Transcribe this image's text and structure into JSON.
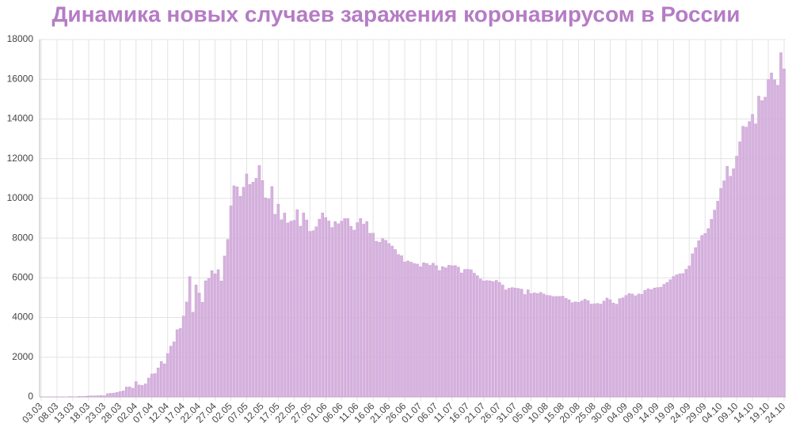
{
  "chart_data": {
    "type": "bar",
    "title": "Динамика новых случаев заражения коронавирусом в России",
    "categories": [
      "03.03",
      null,
      null,
      null,
      null,
      "08.03",
      null,
      null,
      null,
      null,
      "13.03",
      null,
      null,
      null,
      null,
      "18.03",
      null,
      null,
      null,
      null,
      "23.03",
      null,
      null,
      null,
      null,
      "28.03",
      null,
      null,
      null,
      null,
      "02.04",
      null,
      null,
      null,
      null,
      "07.04",
      null,
      null,
      null,
      null,
      "12.04",
      null,
      null,
      null,
      null,
      "17.04",
      null,
      null,
      null,
      null,
      "22.04",
      null,
      null,
      null,
      null,
      "27.04",
      null,
      null,
      null,
      null,
      "02.05",
      null,
      null,
      null,
      null,
      "07.05",
      null,
      null,
      null,
      null,
      "12.05",
      null,
      null,
      null,
      null,
      "17.05",
      null,
      null,
      null,
      null,
      "22.05",
      null,
      null,
      null,
      null,
      "27.05",
      null,
      null,
      null,
      null,
      "01.06",
      null,
      null,
      null,
      null,
      "06.06",
      null,
      null,
      null,
      null,
      "11.06",
      null,
      null,
      null,
      null,
      "16.06",
      null,
      null,
      null,
      null,
      "21.06",
      null,
      null,
      null,
      null,
      "26.06",
      null,
      null,
      null,
      null,
      "01.07",
      null,
      null,
      null,
      null,
      "06.07",
      null,
      null,
      null,
      null,
      "11.07",
      null,
      null,
      null,
      null,
      "16.07",
      null,
      null,
      null,
      null,
      "21.07",
      null,
      null,
      null,
      null,
      "26.07",
      null,
      null,
      null,
      null,
      "31.07",
      null,
      null,
      null,
      null,
      "05.08",
      null,
      null,
      null,
      null,
      "10.08",
      null,
      null,
      null,
      null,
      "15.08",
      null,
      null,
      null,
      null,
      "20.08",
      null,
      null,
      null,
      null,
      "25.08",
      null,
      null,
      null,
      null,
      "30.08",
      null,
      null,
      null,
      null,
      "04.09",
      null,
      null,
      null,
      null,
      "09.09",
      null,
      null,
      null,
      null,
      "14.09",
      null,
      null,
      null,
      null,
      "19.09",
      null,
      null,
      null,
      null,
      "24.09",
      null,
      null,
      null,
      null,
      "29.09",
      null,
      null,
      null,
      null,
      "04.10",
      null,
      null,
      null,
      null,
      "09.10",
      null,
      null,
      null,
      null,
      "14.10",
      null,
      null,
      null,
      null,
      "19.10",
      null,
      null,
      null,
      null,
      "24.10"
    ],
    "values": [
      1,
      0,
      1,
      1,
      4,
      3,
      3,
      2,
      0,
      17,
      11,
      4,
      30,
      21,
      33,
      52,
      53,
      54,
      61,
      71,
      57,
      163,
      182,
      196,
      228,
      270,
      302,
      500,
      501,
      440,
      771,
      601,
      582,
      658,
      954,
      1154,
      1175,
      1459,
      1786,
      1667,
      2186,
      2558,
      2774,
      3388,
      3448,
      4070,
      4785,
      6060,
      4268,
      5642,
      5236,
      4774,
      5849,
      5966,
      6361,
      6198,
      6411,
      5841,
      7099,
      7933,
      9623,
      10633,
      10581,
      10102,
      10559,
      11231,
      10699,
      10817,
      11012,
      11656,
      10899,
      10028,
      9974,
      10598,
      9200,
      9709,
      8926,
      9263,
      8764,
      8849,
      8894,
      9434,
      8599,
      9268,
      8915,
      8338,
      8371,
      8572,
      8952,
      9268,
      9035,
      8863,
      8536,
      8831,
      8726,
      8855,
      8984,
      8985,
      8595,
      8404,
      8779,
      8987,
      8706,
      8835,
      8246,
      8248,
      7843,
      7790,
      7972,
      7889,
      7728,
      7600,
      7425,
      7176,
      7113,
      6800,
      6852,
      6791,
      6719,
      6693,
      6556,
      6760,
      6718,
      6632,
      6736,
      6611,
      6368,
      6562,
      6509,
      6635,
      6611,
      6615,
      6537,
      6248,
      6422,
      6428,
      6406,
      6234,
      6109,
      5940,
      5842,
      5862,
      5848,
      5811,
      5871,
      5765,
      5635,
      5395,
      5475,
      5509,
      5482,
      5462,
      5427,
      5159,
      5394,
      5204,
      5241,
      5212,
      5267,
      5189,
      5118,
      5102,
      5057,
      5065,
      5061,
      5076,
      4969,
      4892,
      4748,
      4790,
      4767,
      4838,
      4921,
      4852,
      4676,
      4696,
      4711,
      4676,
      4829,
      4980,
      4897,
      4729,
      4670,
      4952,
      4995,
      5110,
      5205,
      5185,
      5099,
      5185,
      5172,
      5363,
      5449,
      5406,
      5488,
      5509,
      5529,
      5670,
      5762,
      5905,
      6065,
      6148,
      6196,
      6215,
      6431,
      6595,
      7212,
      7523,
      7867,
      8135,
      8232,
      8481,
      8945,
      9412,
      9859,
      10499,
      10888,
      11615,
      11115,
      11493,
      12126,
      12846,
      13634,
      13592,
      13868,
      14231,
      13754,
      15150,
      14922,
      15099,
      15982,
      16319,
      15971,
      15700,
      17340,
      16521
    ],
    "color": "#d6b3de",
    "edge_color": "#c89ad2",
    "ylim": [
      0,
      18000
    ],
    "yticks": [
      0,
      2000,
      4000,
      6000,
      8000,
      10000,
      12000,
      14000,
      16000,
      18000
    ],
    "grid": true
  }
}
